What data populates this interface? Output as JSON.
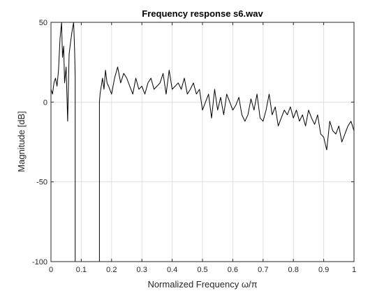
{
  "chart_data": {
    "type": "line",
    "title": "Frequency response s6.wav",
    "xlabel": "Normalized Frequency ω/π",
    "ylabel": "Magnitude [dB]",
    "xlim": [
      0,
      1
    ],
    "ylim": [
      -100,
      50
    ],
    "xticks": [
      0,
      0.1,
      0.2,
      0.3,
      0.4,
      0.5,
      0.6,
      0.7,
      0.8,
      0.9,
      1
    ],
    "xtick_labels": [
      "0",
      "0.1",
      "0.2",
      "0.3",
      "0.4",
      "0.5",
      "0.6",
      "0.7",
      "0.8",
      "0.9",
      "1"
    ],
    "yticks": [
      -100,
      -50,
      0,
      50
    ],
    "ytick_labels": [
      "-100",
      "-50",
      "0",
      "50"
    ],
    "grid": true,
    "line_color": "#000000",
    "series": [
      {
        "x": [
          0,
          0.005,
          0.01,
          0.015,
          0.02,
          0.025,
          0.03,
          0.035,
          0.038,
          0.042,
          0.045,
          0.05,
          0.055,
          0.06,
          0.065,
          0.07,
          0.075,
          0.078,
          0.08,
          0.08,
          0.15,
          0.16,
          0.16,
          0.162,
          0.17,
          0.175,
          0.18,
          0.185,
          0.19,
          0.2,
          0.21,
          0.22,
          0.23,
          0.24,
          0.25,
          0.26,
          0.27,
          0.28,
          0.29,
          0.3,
          0.31,
          0.32,
          0.33,
          0.34,
          0.35,
          0.36,
          0.37,
          0.38,
          0.39,
          0.4,
          0.41,
          0.42,
          0.43,
          0.44,
          0.45,
          0.46,
          0.47,
          0.48,
          0.49,
          0.5,
          0.51,
          0.52,
          0.53,
          0.54,
          0.55,
          0.56,
          0.57,
          0.58,
          0.59,
          0.6,
          0.61,
          0.62,
          0.63,
          0.64,
          0.65,
          0.66,
          0.67,
          0.68,
          0.69,
          0.7,
          0.71,
          0.72,
          0.73,
          0.74,
          0.75,
          0.76,
          0.77,
          0.78,
          0.79,
          0.8,
          0.81,
          0.82,
          0.83,
          0.84,
          0.85,
          0.86,
          0.87,
          0.88,
          0.89,
          0.9,
          0.91,
          0.92,
          0.93,
          0.94,
          0.95,
          0.96,
          0.97,
          0.98,
          0.99,
          1
        ],
        "y": [
          8,
          5,
          12,
          15,
          10,
          20,
          40,
          50,
          28,
          35,
          12,
          22,
          -12,
          30,
          38,
          45,
          50,
          32,
          15,
          -100,
          -100,
          -100,
          0,
          5,
          15,
          8,
          20,
          12,
          10,
          5,
          15,
          22,
          12,
          18,
          15,
          10,
          5,
          15,
          8,
          10,
          5,
          12,
          15,
          8,
          10,
          12,
          18,
          5,
          20,
          8,
          10,
          12,
          8,
          15,
          5,
          8,
          12,
          5,
          8,
          -5,
          0,
          5,
          -10,
          8,
          -5,
          3,
          -8,
          5,
          0,
          -5,
          -2,
          3,
          -8,
          -12,
          -8,
          2,
          -5,
          5,
          -10,
          -12,
          -5,
          5,
          -8,
          -3,
          -15,
          -10,
          -5,
          -8,
          -3,
          -10,
          -5,
          -12,
          -8,
          -15,
          -5,
          -10,
          -14,
          -8,
          -20,
          -22,
          -30,
          -12,
          -18,
          -20,
          -15,
          -25,
          -20,
          -15,
          -12,
          -18
        ]
      }
    ]
  }
}
